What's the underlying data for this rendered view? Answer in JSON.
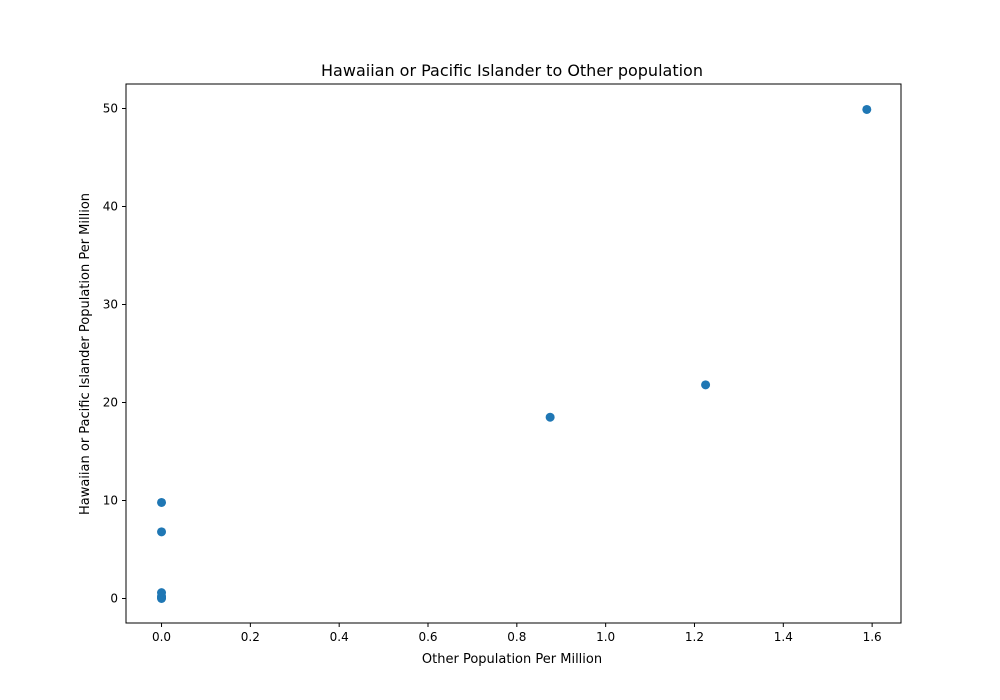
{
  "chart_data": {
    "type": "scatter",
    "title": "Hawaiian or Pacific Islander to Other population",
    "xlabel": "Other Population Per Million",
    "ylabel": "Hawaiian or Pacific Islander Population Per Million",
    "xlim": [
      -0.08,
      1.665
    ],
    "ylim": [
      -2.5,
      52.5
    ],
    "xticks": [
      0.0,
      0.2,
      0.4,
      0.6,
      0.8,
      1.0,
      1.2,
      1.4,
      1.6
    ],
    "xtick_labels": [
      "0.0",
      "0.2",
      "0.4",
      "0.6",
      "0.8",
      "1.0",
      "1.2",
      "1.4",
      "1.6"
    ],
    "yticks": [
      0,
      10,
      20,
      30,
      40,
      50
    ],
    "ytick_labels": [
      "0",
      "10",
      "20",
      "30",
      "40",
      "50"
    ],
    "grid": false,
    "color": "#1f77b4",
    "points": [
      {
        "x": 0.0,
        "y": 0.0
      },
      {
        "x": 0.0,
        "y": 0.1
      },
      {
        "x": 0.0,
        "y": 0.2
      },
      {
        "x": 0.0,
        "y": 0.6
      },
      {
        "x": 0.0,
        "y": 6.8
      },
      {
        "x": 0.0,
        "y": 9.8
      },
      {
        "x": 0.875,
        "y": 18.5
      },
      {
        "x": 1.225,
        "y": 21.8
      },
      {
        "x": 1.588,
        "y": 49.9
      }
    ]
  }
}
